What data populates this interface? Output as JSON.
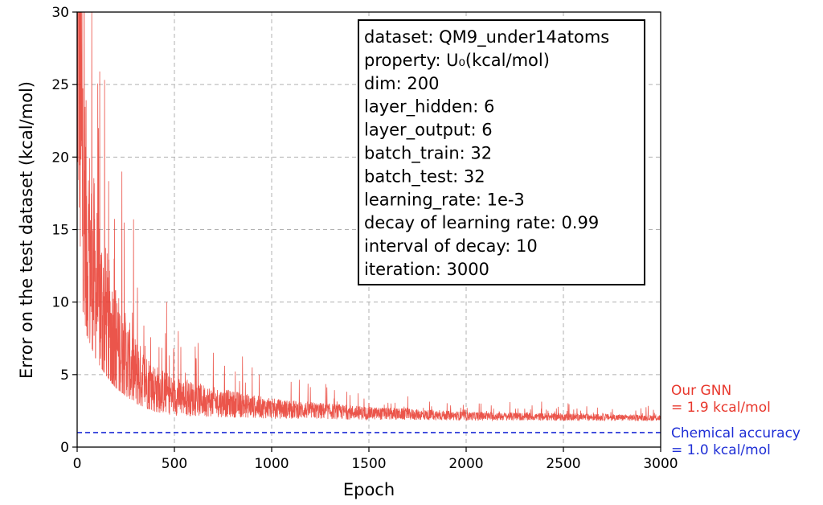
{
  "chart_data": {
    "type": "line",
    "xlabel": "Epoch",
    "ylabel": "Error on the test dataset (kcal/mol)",
    "xlim": [
      0,
      3000
    ],
    "ylim": [
      0,
      30
    ],
    "xticks": [
      "0",
      "500",
      "1000",
      "1500",
      "2000",
      "2500",
      "3000"
    ],
    "yticks": [
      "0",
      "5",
      "10",
      "15",
      "20",
      "25",
      "30"
    ],
    "grid": true,
    "series": [
      {
        "name": "Our GNN",
        "color": "#e8372c",
        "style": "noisy-decay",
        "x": [
          0,
          25,
          50,
          100,
          150,
          200,
          300,
          400,
          500,
          700,
          1000,
          1500,
          2000,
          2500,
          3000
        ],
        "y": [
          30,
          14,
          11,
          8.5,
          7,
          5.8,
          4.3,
          3.5,
          3.1,
          2.8,
          2.45,
          2.2,
          2.05,
          2.0,
          1.95
        ],
        "peaks": [
          [
            25,
            30
          ],
          [
            75,
            30
          ],
          [
            110,
            22
          ],
          [
            190,
            13
          ],
          [
            230,
            19
          ],
          [
            310,
            11
          ],
          [
            460,
            10
          ],
          [
            520,
            8
          ],
          [
            700,
            6.5
          ],
          [
            900,
            5.5
          ],
          [
            1100,
            4.5
          ],
          [
            1700,
            3.5
          ]
        ]
      },
      {
        "name": "Chemical accuracy",
        "color": "#1f2fd6",
        "style": "dashed",
        "x": [
          0,
          3000
        ],
        "y": [
          1.0,
          1.0
        ]
      }
    ],
    "annotations": {
      "gnn_line1": "Our GNN",
      "gnn_line2": "= 1.9 kcal/mol",
      "chem_line1": "Chemical accuracy",
      "chem_line2": "= 1.0 kcal/mol"
    },
    "info_box": [
      "dataset: QM9_under14atoms",
      "property: U₀(kcal/mol)",
      "dim: 200",
      "layer_hidden: 6",
      "layer_output: 6",
      "batch_train: 32",
      "batch_test: 32",
      "learning_rate: 1e-3",
      "decay of learning rate: 0.99",
      "interval of decay: 10",
      "iteration: 3000"
    ]
  }
}
